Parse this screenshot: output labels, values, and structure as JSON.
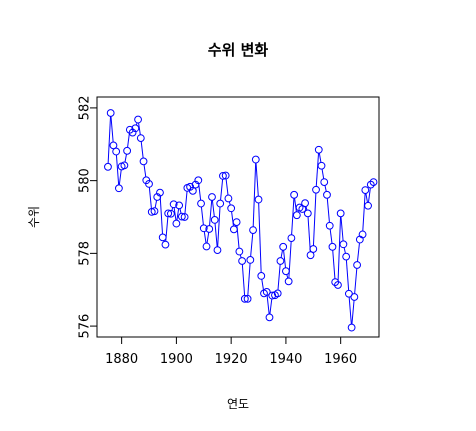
{
  "chart_data": {
    "type": "line",
    "title": "수위 변화",
    "xlabel": "연도",
    "ylabel": "수위",
    "xlim": [
      1871,
      1974
    ],
    "ylim": [
      575.7,
      582.3
    ],
    "x_ticks": [
      1880,
      1900,
      1920,
      1940,
      1960
    ],
    "y_ticks": [
      576,
      578,
      580,
      582
    ],
    "grid": false,
    "line_color": "#0000ff",
    "point_color": "#0000ff",
    "point_style": "open-circle",
    "series": [
      {
        "x": [
          1875,
          1876,
          1877,
          1878,
          1879,
          1880,
          1881,
          1882,
          1883,
          1884,
          1885,
          1886,
          1887,
          1888,
          1889,
          1890,
          1891,
          1892,
          1893,
          1894,
          1895,
          1896,
          1897,
          1898,
          1899,
          1900,
          1901,
          1902,
          1903,
          1904,
          1905,
          1906,
          1907,
          1908,
          1909,
          1910,
          1911,
          1912,
          1913,
          1914,
          1915,
          1916,
          1917,
          1918,
          1919,
          1920,
          1921,
          1922,
          1923,
          1924,
          1925,
          1926,
          1927,
          1928,
          1929,
          1930,
          1931,
          1932,
          1933,
          1934,
          1935,
          1936,
          1937,
          1938,
          1939,
          1940,
          1941,
          1942,
          1943,
          1944,
          1945,
          1946,
          1947,
          1948,
          1949,
          1950,
          1951,
          1952,
          1953,
          1954,
          1955,
          1956,
          1957,
          1958,
          1959,
          1960,
          1961,
          1962,
          1963,
          1964,
          1965,
          1966,
          1967,
          1968,
          1969,
          1970,
          1971,
          1972
        ],
        "y": [
          580.38,
          581.86,
          580.97,
          580.8,
          579.79,
          580.39,
          580.42,
          580.82,
          581.4,
          581.32,
          581.44,
          581.68,
          581.17,
          580.53,
          580.01,
          579.91,
          579.14,
          579.16,
          579.55,
          579.67,
          578.44,
          578.24,
          579.1,
          579.09,
          579.35,
          578.82,
          579.32,
          579.01,
          579.0,
          579.8,
          579.83,
          579.72,
          579.89,
          580.01,
          579.37,
          578.69,
          578.19,
          578.67,
          579.55,
          578.92,
          578.09,
          579.37,
          580.13,
          580.14,
          579.51,
          579.24,
          578.66,
          578.86,
          578.05,
          577.79,
          576.75,
          576.75,
          577.82,
          578.64,
          580.58,
          579.48,
          577.38,
          576.9,
          576.94,
          576.24,
          576.84,
          576.85,
          576.9,
          577.79,
          578.18,
          577.51,
          577.23,
          578.42,
          579.61,
          579.05,
          579.26,
          579.22,
          579.38,
          579.1,
          577.95,
          578.12,
          579.75,
          580.85,
          580.41,
          579.96,
          579.61,
          578.76,
          578.18,
          577.21,
          577.13,
          579.1,
          578.25,
          577.91,
          576.89,
          575.96,
          576.8,
          577.68,
          578.38,
          578.52,
          579.74,
          579.31,
          579.89,
          579.96
        ]
      }
    ]
  }
}
